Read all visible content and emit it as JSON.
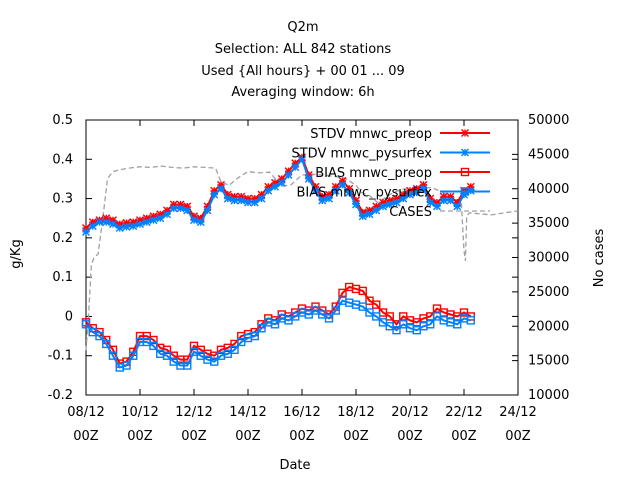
{
  "chart_data": {
    "type": "line",
    "title_lines": [
      "Q2m",
      "Selection: ALL    842 stations",
      "Used {All hours} + 00 01 ... 09",
      "Averaging window:  6h"
    ],
    "xlabel": "Date",
    "ylabel": "g/Kg",
    "y2label": "No cases",
    "x_ticks": [
      {
        "day": 8,
        "top": "08/12",
        "bottom": "00Z"
      },
      {
        "day": 10,
        "top": "10/12",
        "bottom": "00Z"
      },
      {
        "day": 12,
        "top": "12/12",
        "bottom": "00Z"
      },
      {
        "day": 14,
        "top": "14/12",
        "bottom": "00Z"
      },
      {
        "day": 16,
        "top": "16/12",
        "bottom": "00Z"
      },
      {
        "day": 18,
        "top": "18/12",
        "bottom": "00Z"
      },
      {
        "day": 20,
        "top": "20/12",
        "bottom": "00Z"
      },
      {
        "day": 22,
        "top": "22/12",
        "bottom": "00Z"
      },
      {
        "day": 24,
        "top": "24/12",
        "bottom": "00Z"
      }
    ],
    "xlim": [
      8,
      24
    ],
    "ylim": [
      -0.2,
      0.5
    ],
    "y_ticks": [
      "-0.2",
      "-0.1",
      "0",
      "0.1",
      "0.2",
      "0.3",
      "0.4",
      "0.5"
    ],
    "y2lim": [
      10000,
      50000
    ],
    "y2_ticks": [
      "10000",
      "15000",
      "20000",
      "25000",
      "30000",
      "35000",
      "40000",
      "45000",
      "50000"
    ],
    "grid": false,
    "legend_position": "top-right",
    "x": [
      8.0,
      8.25,
      8.5,
      8.75,
      9.0,
      9.25,
      9.5,
      9.75,
      10.0,
      10.25,
      10.5,
      10.75,
      11.0,
      11.25,
      11.5,
      11.75,
      12.0,
      12.25,
      12.5,
      12.75,
      13.0,
      13.25,
      13.5,
      13.75,
      14.0,
      14.25,
      14.5,
      14.75,
      15.0,
      15.25,
      15.5,
      15.75,
      16.0,
      16.25,
      16.5,
      16.75,
      17.0,
      17.25,
      17.5,
      17.75,
      18.0,
      18.25,
      18.5,
      18.75,
      19.0,
      19.25,
      19.5,
      19.75,
      20.0,
      20.25,
      20.5,
      20.75,
      21.0,
      21.25,
      21.5,
      21.75,
      22.0,
      22.25
    ],
    "series": [
      {
        "name": "STDV mnwc_preop",
        "axis": "y1",
        "color": "#ff0000",
        "style": "line-star",
        "values": [
          0.225,
          0.24,
          0.245,
          0.25,
          0.245,
          0.235,
          0.238,
          0.24,
          0.245,
          0.25,
          0.255,
          0.26,
          0.27,
          0.285,
          0.285,
          0.28,
          0.255,
          0.25,
          0.28,
          0.32,
          0.335,
          0.31,
          0.305,
          0.305,
          0.3,
          0.3,
          0.31,
          0.33,
          0.34,
          0.35,
          0.37,
          0.39,
          0.405,
          0.36,
          0.33,
          0.305,
          0.31,
          0.33,
          0.345,
          0.325,
          0.295,
          0.265,
          0.27,
          0.28,
          0.29,
          0.295,
          0.3,
          0.31,
          0.32,
          0.325,
          0.335,
          0.3,
          0.29,
          0.305,
          0.305,
          0.29,
          0.32,
          0.33
        ]
      },
      {
        "name": "STDV mnwc_pysurfex",
        "axis": "y1",
        "color": "#0080ff",
        "style": "line-star",
        "values": [
          0.215,
          0.23,
          0.24,
          0.24,
          0.235,
          0.225,
          0.228,
          0.23,
          0.235,
          0.24,
          0.245,
          0.25,
          0.26,
          0.275,
          0.275,
          0.27,
          0.245,
          0.24,
          0.27,
          0.31,
          0.325,
          0.3,
          0.295,
          0.295,
          0.29,
          0.29,
          0.3,
          0.32,
          0.33,
          0.34,
          0.36,
          0.38,
          0.4,
          0.35,
          0.32,
          0.295,
          0.3,
          0.32,
          0.335,
          0.315,
          0.285,
          0.255,
          0.26,
          0.27,
          0.28,
          0.285,
          0.29,
          0.3,
          0.31,
          0.315,
          0.325,
          0.29,
          0.28,
          0.295,
          0.295,
          0.28,
          0.31,
          0.32
        ]
      },
      {
        "name": "BIAS mnwc_preop",
        "axis": "y1",
        "color": "#ff0000",
        "style": "line-square",
        "values": [
          -0.015,
          -0.03,
          -0.04,
          -0.06,
          -0.085,
          -0.12,
          -0.115,
          -0.09,
          -0.05,
          -0.05,
          -0.06,
          -0.08,
          -0.085,
          -0.1,
          -0.11,
          -0.11,
          -0.075,
          -0.085,
          -0.095,
          -0.1,
          -0.085,
          -0.08,
          -0.07,
          -0.05,
          -0.045,
          -0.04,
          -0.02,
          -0.005,
          -0.01,
          0.005,
          0.0,
          0.01,
          0.02,
          0.015,
          0.025,
          0.015,
          0.005,
          0.025,
          0.06,
          0.075,
          0.07,
          0.065,
          0.04,
          0.03,
          0.01,
          0.0,
          -0.02,
          0.0,
          -0.01,
          -0.015,
          -0.005,
          0.0,
          0.02,
          0.01,
          0.005,
          0.0,
          0.01,
          0.0
        ]
      },
      {
        "name": "BIAS mnwc_pysurfex",
        "axis": "y1",
        "color": "#0080ff",
        "style": "line-square",
        "values": [
          -0.02,
          -0.04,
          -0.05,
          -0.07,
          -0.1,
          -0.13,
          -0.125,
          -0.1,
          -0.065,
          -0.065,
          -0.075,
          -0.095,
          -0.1,
          -0.115,
          -0.125,
          -0.125,
          -0.09,
          -0.1,
          -0.11,
          -0.115,
          -0.1,
          -0.095,
          -0.085,
          -0.065,
          -0.055,
          -0.05,
          -0.03,
          -0.015,
          -0.02,
          -0.005,
          -0.01,
          0.0,
          0.01,
          0.005,
          0.015,
          0.005,
          -0.005,
          0.015,
          0.04,
          0.035,
          0.03,
          0.025,
          0.01,
          0.0,
          -0.015,
          -0.025,
          -0.035,
          -0.02,
          -0.03,
          -0.035,
          -0.025,
          -0.02,
          0.0,
          -0.01,
          -0.015,
          -0.02,
          -0.005,
          -0.01
        ]
      }
    ],
    "cases_series": {
      "name": "CASES",
      "axis": "y2",
      "color": "#a0a0a0",
      "style": "dashed",
      "x": [
        8.0,
        8.1,
        8.2,
        8.3,
        8.45,
        8.6,
        8.8,
        9.0,
        9.3,
        9.6,
        10.0,
        10.4,
        10.8,
        11.2,
        11.6,
        12.0,
        12.4,
        12.8,
        13.0,
        13.3,
        13.6,
        14.0,
        14.4,
        14.8,
        15.0,
        15.2,
        15.6,
        16.0,
        16.4,
        16.8,
        17.2,
        17.6,
        18.0,
        18.2,
        18.5,
        18.8,
        19.0,
        19.4,
        19.8,
        20.0,
        20.4,
        20.8,
        21.2,
        21.6,
        21.9,
        22.0,
        22.05,
        22.1,
        22.2,
        23.0,
        24.0
      ],
      "values": [
        16500,
        22000,
        29000,
        30000,
        30500,
        35000,
        41500,
        42500,
        42800,
        43000,
        43200,
        43100,
        43300,
        43100,
        43000,
        43200,
        43100,
        43000,
        41000,
        40500,
        41500,
        42500,
        42300,
        42400,
        41500,
        40300,
        40600,
        42000,
        42100,
        42000,
        41800,
        41500,
        40500,
        39500,
        39000,
        38000,
        38500,
        39500,
        40000,
        39800,
        40000,
        40200,
        39500,
        38500,
        38000,
        31000,
        29500,
        36000,
        36500,
        36200,
        36800
      ]
    }
  }
}
